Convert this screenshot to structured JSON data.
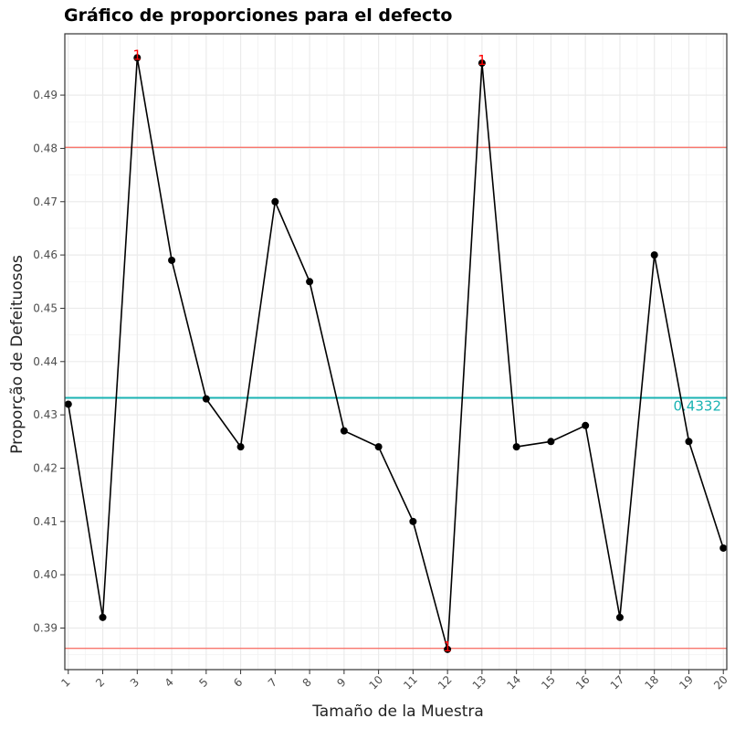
{
  "chart_data": {
    "type": "line",
    "title": "Gráfico de proporciones para el defecto",
    "xlabel": "Tamaño de la Muestra",
    "ylabel": "Proporção de Defeituosos",
    "x": [
      1,
      2,
      3,
      4,
      5,
      6,
      7,
      8,
      9,
      10,
      11,
      12,
      13,
      14,
      15,
      16,
      17,
      18,
      19,
      20
    ],
    "series": [
      {
        "values": [
          0.432,
          0.392,
          0.497,
          0.459,
          0.433,
          0.424,
          0.47,
          0.455,
          0.427,
          0.424,
          0.41,
          0.386,
          0.496,
          0.424,
          0.425,
          0.428,
          0.392,
          0.46,
          0.425,
          0.405
        ]
      }
    ],
    "y_ticks": [
      0.39,
      0.4,
      0.41,
      0.42,
      0.43,
      0.44,
      0.45,
      0.46,
      0.47,
      0.48,
      0.49
    ],
    "x_ticks": [
      1,
      2,
      3,
      4,
      5,
      6,
      7,
      8,
      9,
      10,
      11,
      12,
      13,
      14,
      15,
      16,
      17,
      18,
      19,
      20
    ],
    "xlim": [
      0.9,
      20.1
    ],
    "ylim": [
      0.3822,
      0.5015
    ],
    "grid": true,
    "center_line": {
      "value": 0.4332,
      "label": "0.4332",
      "color": "#1ab3b3"
    },
    "control_limits": {
      "ucl": 0.4802,
      "lcl": 0.3862,
      "color": "#f8766d"
    },
    "out_of_control": [
      {
        "x": 3,
        "label": "1"
      },
      {
        "x": 12,
        "label": "1"
      },
      {
        "x": 13,
        "label": "1"
      }
    ],
    "colors": {
      "line": "#000000",
      "flag": "#ff0000",
      "panel_border": "#333333",
      "grid": "#ebebeb"
    }
  }
}
